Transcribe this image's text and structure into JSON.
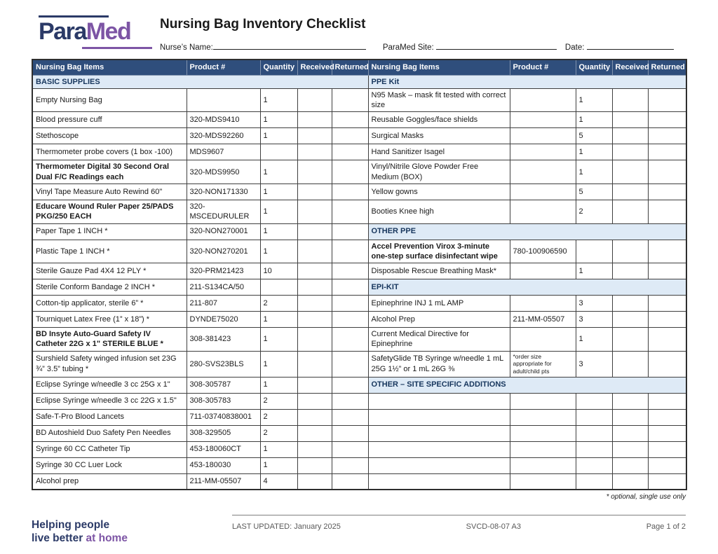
{
  "colors": {
    "navy": "#2B3A67",
    "purple": "#7D55A5",
    "header_bg": "#2F4E7C",
    "section_bg": "#DEEAF6",
    "section_text": "#17365D"
  },
  "brand": {
    "logo_para": "Para",
    "logo_med": "Med",
    "tagline_line1": "Helping people",
    "tagline_line2": "live better ",
    "tagline_accent": "at home"
  },
  "header": {
    "title": "Nursing Bag Inventory Checklist",
    "nurse_label": "Nurse’s Name:",
    "site_label": "ParaMed Site:",
    "date_label": "Date:"
  },
  "table": {
    "columns": [
      "Nursing Bag Items",
      "Product #",
      "Quantity",
      "Received",
      "Returned"
    ],
    "rows": [
      {
        "left": {
          "section": "BASIC SUPPLIES"
        },
        "right": {
          "section": "PPE Kit"
        }
      },
      {
        "left": {
          "item": "Empty Nursing Bag",
          "product": "",
          "qty": "1"
        },
        "right": {
          "item": "N95 Mask – mask fit tested with correct size",
          "product": "",
          "qty": "1"
        }
      },
      {
        "left": {
          "item": "Blood pressure cuff",
          "product": "320-MDS9410",
          "qty": "1"
        },
        "right": {
          "item": "Reusable Goggles/face shields",
          "product": "",
          "qty": "1"
        }
      },
      {
        "left": {
          "item": "Stethoscope",
          "product": "320-MDS92260",
          "qty": "1"
        },
        "right": {
          "item": "Surgical Masks",
          "product": "",
          "qty": "5"
        }
      },
      {
        "left": {
          "item": "Thermometer probe covers (1 box -100)",
          "product": "MDS9607",
          "qty": ""
        },
        "right": {
          "item": "Hand Sanitizer Isagel",
          "product": "",
          "qty": "1"
        }
      },
      {
        "left": {
          "item": "Thermometer Digital 30 Second Oral Dual F/C Readings each",
          "product": "320-MDS9950",
          "qty": "1",
          "bold": true
        },
        "right": {
          "item": "Vinyl/Nitrile Glove Powder Free Medium (BOX)",
          "product": "",
          "qty": "1"
        }
      },
      {
        "left": {
          "item": "Vinyl Tape Measure Auto Rewind 60\"",
          "product": "320-NON171330",
          "qty": "1"
        },
        "right": {
          "item": "Yellow gowns",
          "product": "",
          "qty": "5"
        }
      },
      {
        "left": {
          "item": "Educare Wound Ruler Paper 25/PADS PKG/250 EACH",
          "product": "320-MSCEDURULER",
          "qty": "1",
          "bold": true
        },
        "right": {
          "item": "Booties Knee high",
          "product": "",
          "qty": "2"
        }
      },
      {
        "left": {
          "item": "Paper Tape 1 INCH *",
          "product": "320-NON270001",
          "qty": "1"
        },
        "right": {
          "section": "OTHER PPE"
        }
      },
      {
        "left": {
          "item": "Plastic Tape 1 INCH *",
          "product": "320-NON270201",
          "qty": "1"
        },
        "right": {
          "item": "Accel Prevention Virox 3-minute one-step surface disinfectant wipe",
          "product": "780-100906590",
          "qty": "",
          "bold": true
        }
      },
      {
        "left": {
          "item": "Sterile Gauze Pad 4X4 12 PLY *",
          "product": "320-PRM21423",
          "qty": "10"
        },
        "right": {
          "item": "Disposable Rescue Breathing Mask*",
          "product": "",
          "qty": "1"
        }
      },
      {
        "left": {
          "item": "Sterile Conform Bandage 2 INCH *",
          "product": "211-S134CA/50",
          "qty": ""
        },
        "right": {
          "section": "EPI-KIT"
        }
      },
      {
        "left": {
          "item": "Cotton-tip applicator, sterile 6” *",
          "product": "211-807",
          "qty": "2"
        },
        "right": {
          "item": "Epinephrine INJ 1 mL AMP",
          "product": "",
          "qty": "3"
        }
      },
      {
        "left": {
          "item": "Tourniquet Latex Free (1” x 18”) *",
          "product": "DYNDE75020",
          "qty": "1"
        },
        "right": {
          "item": "Alcohol Prep",
          "product": "211-MM-05507",
          "qty": "3"
        }
      },
      {
        "left": {
          "item": "BD Insyte Auto-Guard Safety IV Catheter 22G x 1\" STERILE BLUE *",
          "product": "308-381423",
          "qty": "1",
          "bold": true
        },
        "right": {
          "item": "Current Medical Directive for Epinephrine",
          "product": "",
          "qty": "1"
        }
      },
      {
        "left": {
          "item": "Surshield Safety winged infusion set 23G ¾” 3.5” tubing *",
          "product": "280-SVS23BLS",
          "qty": "1"
        },
        "right": {
          "item": "SafetyGlide TB Syringe w/needle 1 mL 25G 1½” or 1 mL 26G ⅜",
          "product": "*order size appropriate for adult/child pts",
          "qty": "3",
          "product_small": true
        }
      },
      {
        "left": {
          "item": "Eclipse Syringe w/needle 3 cc 25G x 1\"",
          "product": "308-305787",
          "qty": "1"
        },
        "right": {
          "section": "OTHER – SITE SPECIFIC ADDITIONS"
        }
      },
      {
        "left": {
          "item": "Eclipse Syringe w/needle 3 cc 22G x 1.5\"",
          "product": "308-305783",
          "qty": "2"
        },
        "right": {
          "item": "",
          "product": "",
          "qty": ""
        }
      },
      {
        "left": {
          "item": "Safe-T-Pro Blood Lancets",
          "product": "711-03740838001",
          "qty": "2"
        },
        "right": {
          "item": "",
          "product": "",
          "qty": ""
        }
      },
      {
        "left": {
          "item": "BD Autoshield Duo Safety Pen Needles",
          "product": "308-329505",
          "qty": "2"
        },
        "right": {
          "item": "",
          "product": "",
          "qty": ""
        }
      },
      {
        "left": {
          "item": "Syringe 60 CC Catheter Tip",
          "product": "453-180060CT",
          "qty": "1"
        },
        "right": {
          "item": "",
          "product": "",
          "qty": ""
        }
      },
      {
        "left": {
          "item": "Syringe 30 CC Luer Lock",
          "product": "453-180030",
          "qty": "1"
        },
        "right": {
          "item": "",
          "product": "",
          "qty": ""
        }
      },
      {
        "left": {
          "item": "Alcohol prep",
          "product": "211-MM-05507",
          "qty": "4"
        },
        "right": {
          "item": "",
          "product": "",
          "qty": ""
        }
      }
    ]
  },
  "footnote": "* optional, single use only",
  "footer": {
    "last_updated": "LAST UPDATED: January 2025",
    "doc_code": "SVCD-08-07 A3",
    "page": "Page 1 of 2"
  }
}
